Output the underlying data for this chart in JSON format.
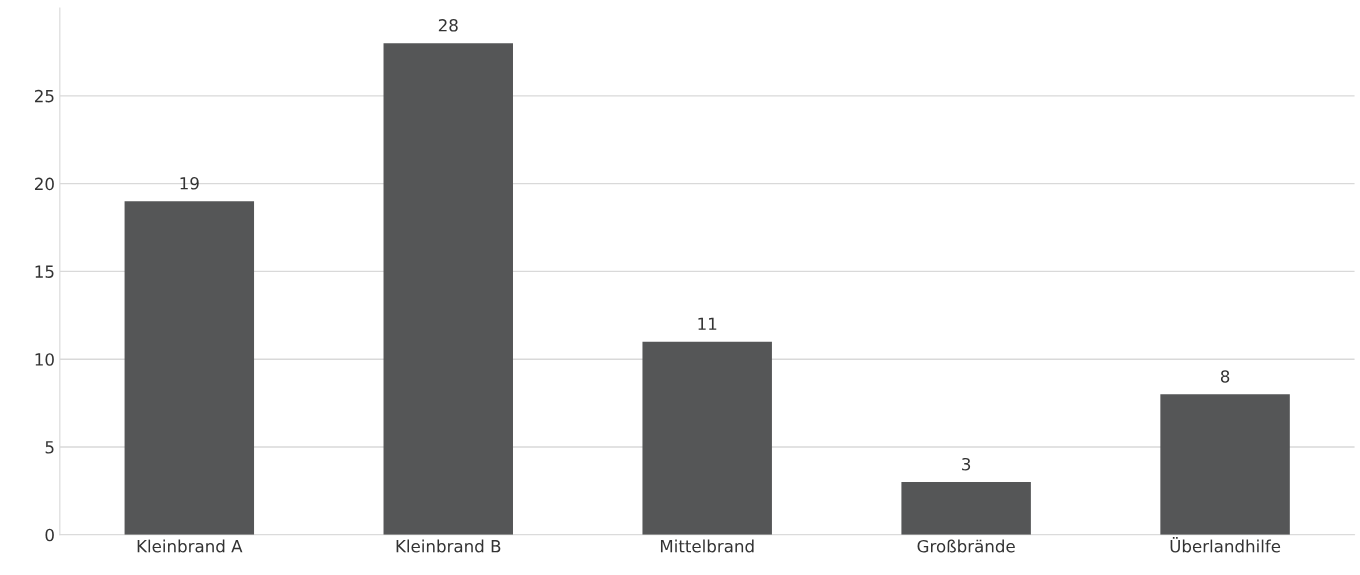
{
  "chart_data": {
    "type": "bar",
    "categories": [
      "Kleinbrand A",
      "Kleinbrand B",
      "Mittelbrand",
      "Großbrände",
      "Überlandhilfe"
    ],
    "values": [
      19,
      28,
      11,
      3,
      8
    ],
    "color": "#555657",
    "ylim": [
      0,
      30
    ],
    "yticks": [
      0,
      5,
      10,
      15,
      20,
      25
    ],
    "grid": "y",
    "data_labels": true,
    "legend": false
  }
}
